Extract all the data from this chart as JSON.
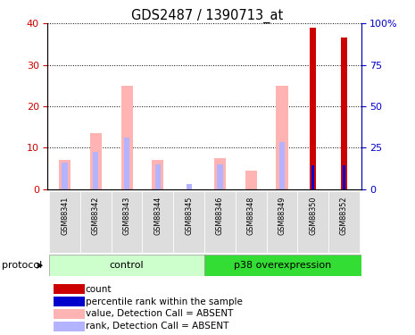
{
  "title": "GDS2487 / 1390713_at",
  "samples": [
    "GSM88341",
    "GSM88342",
    "GSM88343",
    "GSM88344",
    "GSM88345",
    "GSM88346",
    "GSM88348",
    "GSM88349",
    "GSM88350",
    "GSM88352"
  ],
  "value_absent": [
    7.0,
    13.5,
    25.0,
    7.0,
    0.0,
    7.5,
    4.5,
    25.0,
    0.0,
    0.0
  ],
  "rank_absent": [
    6.5,
    9.0,
    12.5,
    6.0,
    1.2,
    6.0,
    0.0,
    11.5,
    0.0,
    0.0
  ],
  "count": [
    0,
    0,
    0,
    0,
    0,
    0,
    0,
    0,
    39.0,
    36.5
  ],
  "percentile_rank": [
    0,
    0,
    0,
    0,
    0,
    0,
    0,
    0,
    14.5,
    14.5
  ],
  "ylim_left": [
    0,
    40
  ],
  "ylim_right": [
    0,
    100
  ],
  "yticks_left": [
    0,
    10,
    20,
    30,
    40
  ],
  "yticks_right": [
    0,
    25,
    50,
    75,
    100
  ],
  "colors": {
    "count": "#cc0000",
    "percentile_rank": "#0000cc",
    "value_absent": "#ffb3b3",
    "rank_absent": "#b3b3ff",
    "left_axis": "#cc0000",
    "right_axis": "#0000cc"
  },
  "legend": [
    {
      "label": "count",
      "color": "#cc0000"
    },
    {
      "label": "percentile rank within the sample",
      "color": "#0000cc"
    },
    {
      "label": "value, Detection Call = ABSENT",
      "color": "#ffb3b3"
    },
    {
      "label": "rank, Detection Call = ABSENT",
      "color": "#b3b3ff"
    }
  ],
  "control_indices": [
    0,
    1,
    2,
    3,
    4
  ],
  "p38_indices": [
    5,
    6,
    7,
    8,
    9
  ],
  "group_label": "protocol",
  "control_color": "#ccffcc",
  "p38_color": "#33dd33",
  "sample_box_color": "#dddddd"
}
